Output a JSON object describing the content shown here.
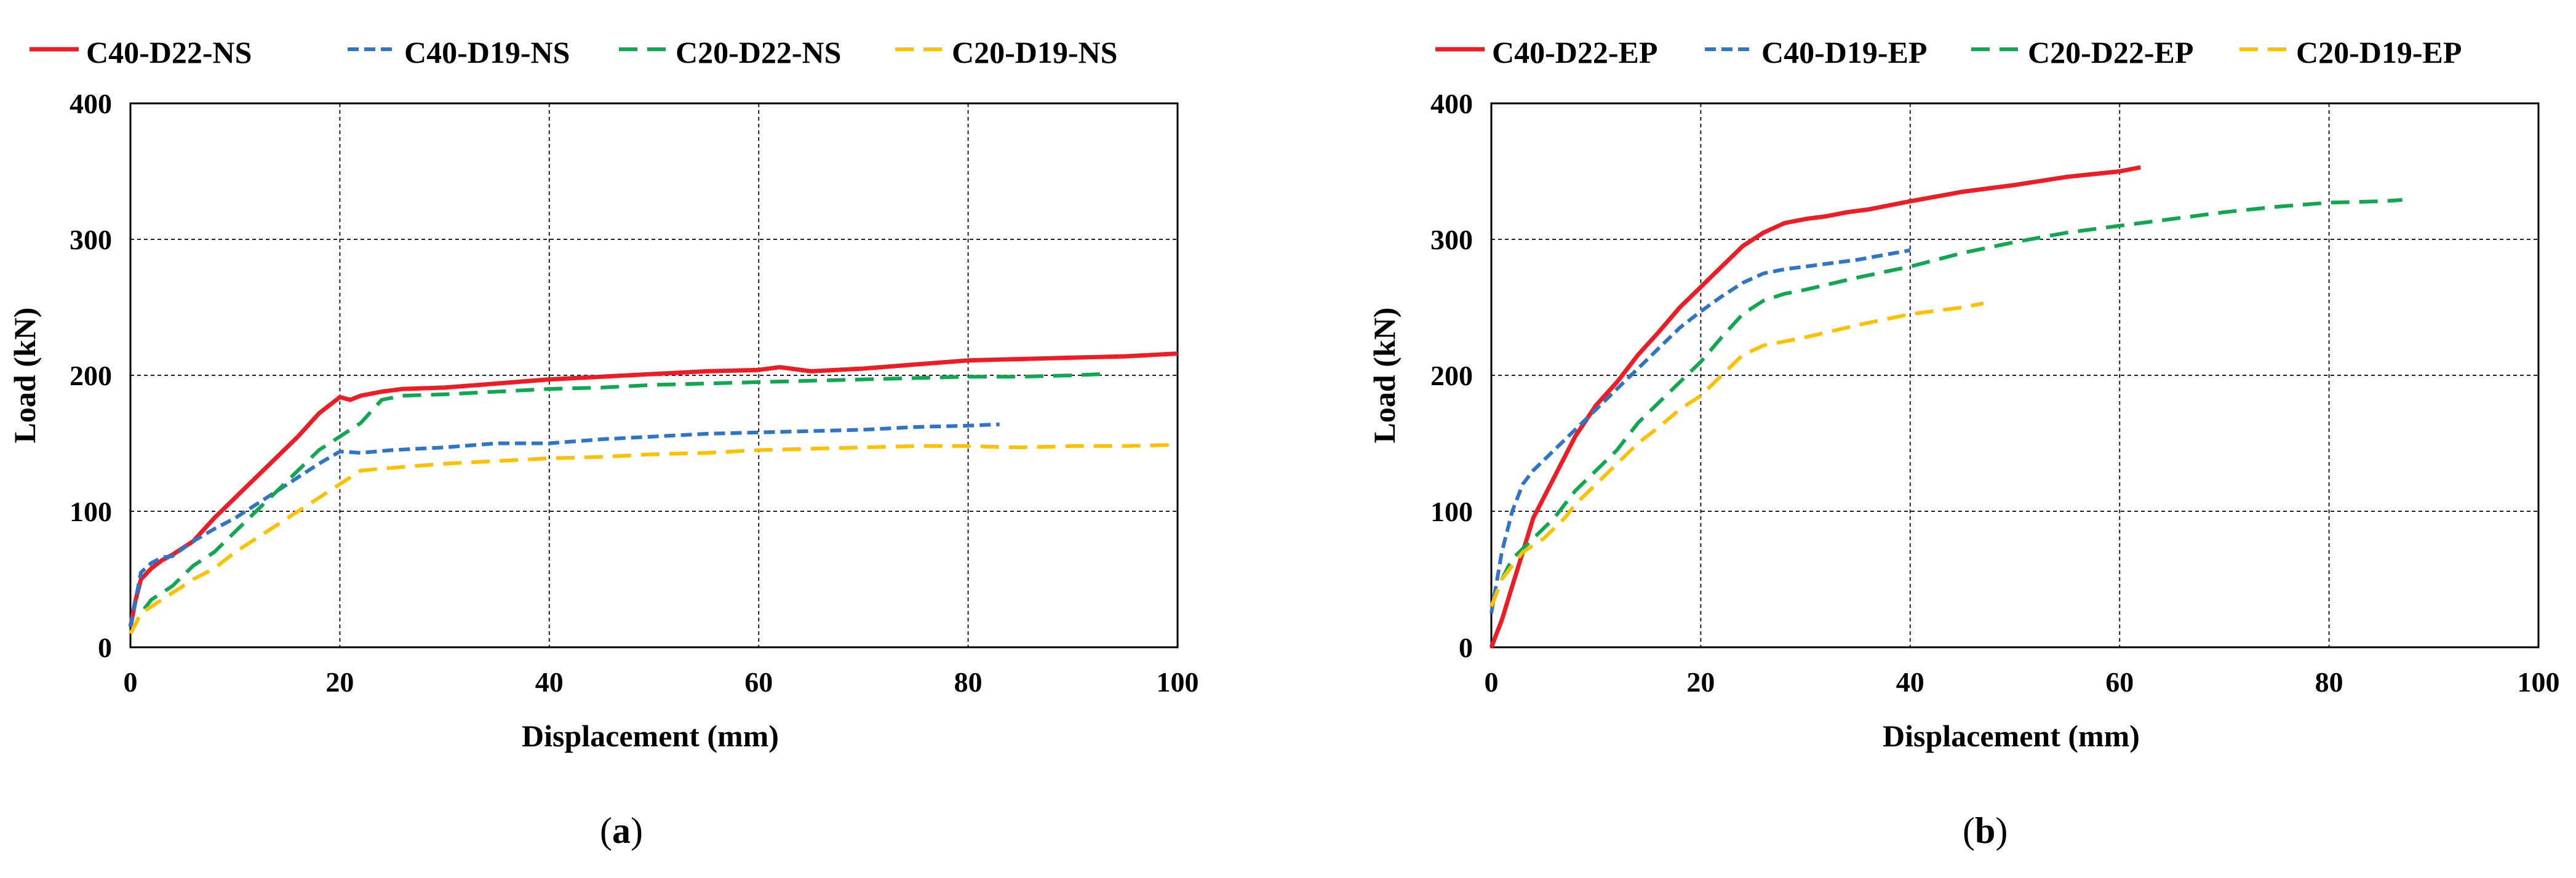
{
  "chart_data": [
    {
      "type": "line",
      "panel_label": "(a)",
      "panel_letter": "a",
      "xlabel": "Displacement (mm)",
      "ylabel": "Load (kN)",
      "xlim": [
        0,
        100
      ],
      "ylim": [
        0,
        400
      ],
      "xticks": [
        0,
        20,
        40,
        60,
        80,
        100
      ],
      "yticks": [
        0,
        100,
        200,
        300,
        400
      ],
      "xtick_labels": [
        "0",
        "20",
        "40",
        "60",
        "80",
        "100"
      ],
      "ytick_labels": [
        "0",
        "100",
        "200",
        "300",
        "400"
      ],
      "grid": true,
      "legend_position": "top",
      "series": [
        {
          "name": "C40-D22-NS",
          "color": "#ee1c25",
          "dash": "solid",
          "points": [
            [
              0,
              15
            ],
            [
              0.5,
              35
            ],
            [
              1,
              50
            ],
            [
              2,
              58
            ],
            [
              3,
              64
            ],
            [
              4,
              68
            ],
            [
              6,
              78
            ],
            [
              8,
              95
            ],
            [
              10,
              110
            ],
            [
              12,
              125
            ],
            [
              14,
              140
            ],
            [
              16,
              155
            ],
            [
              18,
              172
            ],
            [
              20,
              184
            ],
            [
              21,
              182
            ],
            [
              22,
              185
            ],
            [
              24,
              188
            ],
            [
              26,
              190
            ],
            [
              30,
              191
            ],
            [
              35,
              194
            ],
            [
              40,
              197
            ],
            [
              45,
              199
            ],
            [
              50,
              201
            ],
            [
              55,
              203
            ],
            [
              60,
              204
            ],
            [
              62,
              206
            ],
            [
              65,
              203
            ],
            [
              70,
              205
            ],
            [
              75,
              208
            ],
            [
              80,
              211
            ],
            [
              85,
              212
            ],
            [
              90,
              213
            ],
            [
              95,
              214
            ],
            [
              100,
              216
            ]
          ]
        },
        {
          "name": "C40-D19-NS",
          "color": "#2e75c8",
          "dash": "medium",
          "points": [
            [
              0,
              15
            ],
            [
              0.5,
              35
            ],
            [
              1,
              55
            ],
            [
              2,
              62
            ],
            [
              3,
              66
            ],
            [
              4,
              67
            ],
            [
              6,
              78
            ],
            [
              8,
              87
            ],
            [
              10,
              95
            ],
            [
              12,
              105
            ],
            [
              14,
              115
            ],
            [
              16,
              125
            ],
            [
              18,
              135
            ],
            [
              20,
              144
            ],
            [
              22,
              143
            ],
            [
              25,
              145
            ],
            [
              30,
              147
            ],
            [
              35,
              150
            ],
            [
              40,
              150
            ],
            [
              45,
              153
            ],
            [
              50,
              155
            ],
            [
              55,
              157
            ],
            [
              60,
              158
            ],
            [
              65,
              159
            ],
            [
              70,
              160
            ],
            [
              75,
              162
            ],
            [
              80,
              163
            ],
            [
              83,
              164
            ]
          ]
        },
        {
          "name": "C20-D22-NS",
          "color": "#10a84f",
          "dash": "long",
          "points": [
            [
              0,
              10
            ],
            [
              1,
              25
            ],
            [
              2,
              35
            ],
            [
              4,
              45
            ],
            [
              6,
              60
            ],
            [
              8,
              70
            ],
            [
              10,
              85
            ],
            [
              12,
              100
            ],
            [
              14,
              115
            ],
            [
              16,
              130
            ],
            [
              18,
              145
            ],
            [
              20,
              155
            ],
            [
              22,
              165
            ],
            [
              24,
              182
            ],
            [
              26,
              185
            ],
            [
              30,
              186
            ],
            [
              35,
              188
            ],
            [
              40,
              190
            ],
            [
              45,
              191
            ],
            [
              50,
              193
            ],
            [
              55,
              194
            ],
            [
              60,
              195
            ],
            [
              65,
              196
            ],
            [
              70,
              197
            ],
            [
              75,
              198
            ],
            [
              80,
              199
            ],
            [
              85,
              199
            ],
            [
              90,
              200
            ],
            [
              93,
              201
            ]
          ]
        },
        {
          "name": "C20-D19-NS",
          "color": "#ffc000",
          "dash": "long",
          "points": [
            [
              0,
              10
            ],
            [
              1,
              25
            ],
            [
              2,
              30
            ],
            [
              4,
              40
            ],
            [
              6,
              50
            ],
            [
              8,
              58
            ],
            [
              10,
              70
            ],
            [
              12,
              80
            ],
            [
              14,
              90
            ],
            [
              16,
              100
            ],
            [
              18,
              110
            ],
            [
              20,
              120
            ],
            [
              22,
              130
            ],
            [
              25,
              132
            ],
            [
              30,
              135
            ],
            [
              35,
              137
            ],
            [
              40,
              139
            ],
            [
              45,
              140
            ],
            [
              50,
              142
            ],
            [
              55,
              143
            ],
            [
              60,
              145
            ],
            [
              65,
              146
            ],
            [
              70,
              147
            ],
            [
              75,
              148
            ],
            [
              80,
              148
            ],
            [
              85,
              147
            ],
            [
              90,
              148
            ],
            [
              95,
              148
            ],
            [
              100,
              149
            ]
          ]
        }
      ]
    },
    {
      "type": "line",
      "panel_label": "(b)",
      "panel_letter": "b",
      "xlabel": "Displacement (mm)",
      "ylabel": "Load (kN)",
      "xlim": [
        0,
        100
      ],
      "ylim": [
        0,
        400
      ],
      "xticks": [
        0,
        20,
        40,
        60,
        80,
        100
      ],
      "yticks": [
        0,
        100,
        200,
        300,
        400
      ],
      "xtick_labels": [
        "0",
        "20",
        "40",
        "60",
        "80",
        "100"
      ],
      "ytick_labels": [
        "0",
        "100",
        "200",
        "300",
        "400"
      ],
      "grid": true,
      "legend_position": "top",
      "series": [
        {
          "name": "C40-D22-EP",
          "color": "#ee1c25",
          "dash": "solid",
          "points": [
            [
              0,
              0
            ],
            [
              1,
              20
            ],
            [
              2,
              45
            ],
            [
              3,
              70
            ],
            [
              4,
              95
            ],
            [
              6,
              125
            ],
            [
              8,
              155
            ],
            [
              10,
              178
            ],
            [
              12,
              195
            ],
            [
              14,
              215
            ],
            [
              16,
              232
            ],
            [
              18,
              250
            ],
            [
              20,
              265
            ],
            [
              22,
              280
            ],
            [
              24,
              295
            ],
            [
              26,
              305
            ],
            [
              28,
              312
            ],
            [
              30,
              315
            ],
            [
              32,
              317
            ],
            [
              34,
              320
            ],
            [
              36,
              322
            ],
            [
              40,
              328
            ],
            [
              45,
              335
            ],
            [
              50,
              340
            ],
            [
              55,
              346
            ],
            [
              60,
              350
            ],
            [
              62,
              353
            ]
          ]
        },
        {
          "name": "C40-D19-EP",
          "color": "#2e75c8",
          "dash": "medium",
          "points": [
            [
              0,
              25
            ],
            [
              1,
              70
            ],
            [
              2,
              100
            ],
            [
              3,
              120
            ],
            [
              4,
              130
            ],
            [
              6,
              145
            ],
            [
              8,
              160
            ],
            [
              10,
              175
            ],
            [
              12,
              190
            ],
            [
              14,
              205
            ],
            [
              16,
              220
            ],
            [
              18,
              235
            ],
            [
              20,
              247
            ],
            [
              22,
              258
            ],
            [
              24,
              268
            ],
            [
              26,
              275
            ],
            [
              28,
              278
            ],
            [
              30,
              280
            ],
            [
              35,
              285
            ],
            [
              40,
              292
            ]
          ]
        },
        {
          "name": "C20-D22-EP",
          "color": "#10a84f",
          "dash": "long",
          "points": [
            [
              0,
              30
            ],
            [
              1,
              50
            ],
            [
              2,
              65
            ],
            [
              4,
              80
            ],
            [
              6,
              95
            ],
            [
              8,
              115
            ],
            [
              10,
              130
            ],
            [
              12,
              145
            ],
            [
              14,
              165
            ],
            [
              16,
              180
            ],
            [
              18,
              195
            ],
            [
              20,
              210
            ],
            [
              22,
              228
            ],
            [
              24,
              245
            ],
            [
              26,
              255
            ],
            [
              28,
              260
            ],
            [
              30,
              263
            ],
            [
              35,
              272
            ],
            [
              40,
              280
            ],
            [
              45,
              290
            ],
            [
              50,
              298
            ],
            [
              55,
              305
            ],
            [
              60,
              310
            ],
            [
              65,
              315
            ],
            [
              70,
              320
            ],
            [
              75,
              324
            ],
            [
              80,
              327
            ],
            [
              85,
              328
            ],
            [
              87,
              329
            ]
          ]
        },
        {
          "name": "C20-D19-EP",
          "color": "#ffc000",
          "dash": "long",
          "points": [
            [
              0,
              30
            ],
            [
              1,
              50
            ],
            [
              2,
              60
            ],
            [
              3,
              70
            ],
            [
              5,
              80
            ],
            [
              7,
              95
            ],
            [
              8,
              105
            ],
            [
              10,
              120
            ],
            [
              12,
              135
            ],
            [
              14,
              150
            ],
            [
              16,
              162
            ],
            [
              18,
              175
            ],
            [
              20,
              185
            ],
            [
              22,
              200
            ],
            [
              24,
              215
            ],
            [
              26,
              222
            ],
            [
              28,
              225
            ],
            [
              30,
              228
            ],
            [
              35,
              237
            ],
            [
              40,
              245
            ],
            [
              45,
              250
            ],
            [
              47,
              253
            ]
          ]
        }
      ]
    }
  ]
}
